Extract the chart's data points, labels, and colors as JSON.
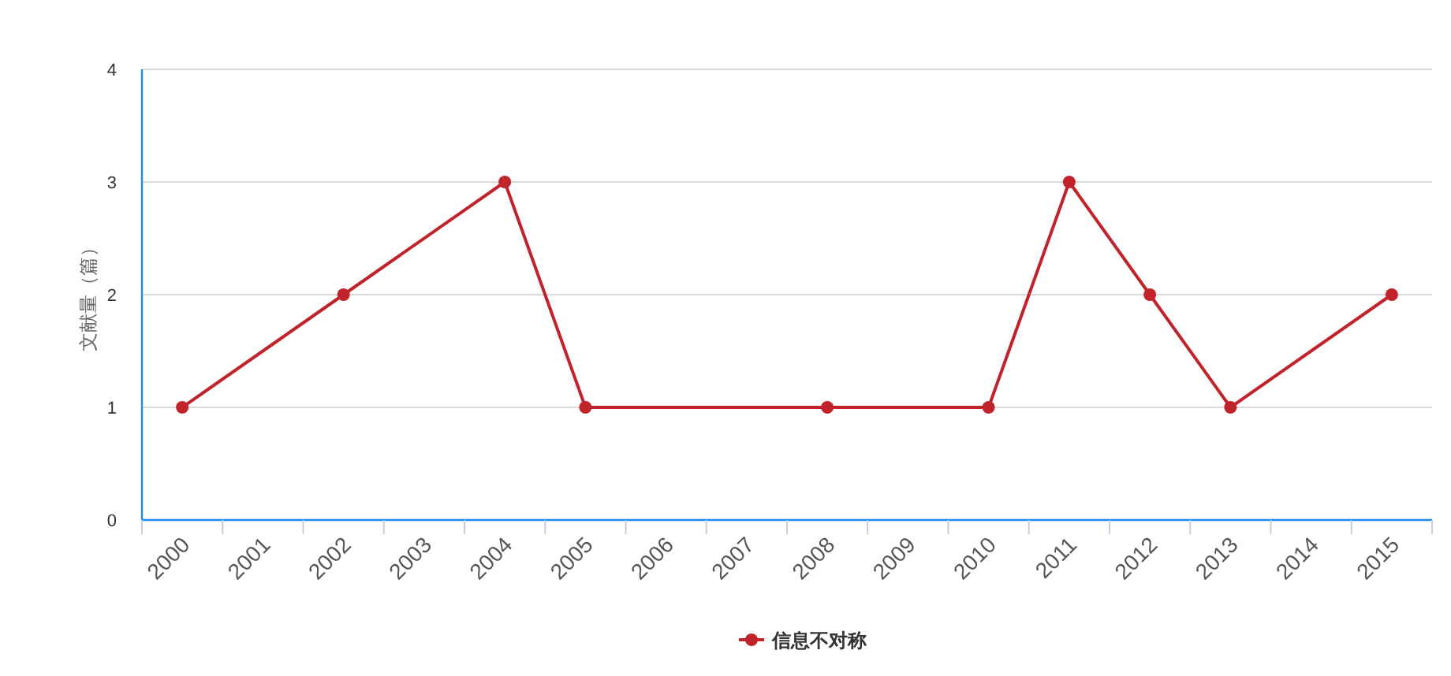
{
  "chart_data": {
    "type": "line",
    "ylabel": "文献量（篇）",
    "x": [
      2000,
      2002,
      2004,
      2005,
      2008,
      2010,
      2011,
      2012,
      2013,
      2015
    ],
    "series": [
      {
        "name": "信息不对称",
        "color": "#c1232b",
        "values": [
          1,
          2,
          3,
          1,
          1,
          1,
          3,
          2,
          1,
          2
        ]
      }
    ],
    "xlim": [
      1999.5,
      2015.5
    ],
    "xticks": [
      {
        "value": 1999.5,
        "label": null
      },
      2000,
      {
        "value": 2000.5,
        "label": null
      },
      2001,
      {
        "value": 2001.5,
        "label": null
      },
      2002,
      {
        "value": 2002.5,
        "label": null
      },
      2003,
      {
        "value": 2003.5,
        "label": null
      },
      2004,
      {
        "value": 2004.5,
        "label": null
      },
      2005,
      {
        "value": 2005.5,
        "label": null
      },
      2006,
      {
        "value": 2006.5,
        "label": null
      },
      2007,
      {
        "value": 2007.5,
        "label": null
      },
      2008,
      {
        "value": 2008.5,
        "label": null
      },
      2009,
      {
        "value": 2009.5,
        "label": null
      },
      2010,
      {
        "value": 2010.5,
        "label": null
      },
      2011,
      {
        "value": 2011.5,
        "label": null
      },
      2012,
      {
        "value": 2012.5,
        "label": null
      },
      2013,
      {
        "value": 2013.5,
        "label": null
      },
      2014,
      {
        "value": 2014.5,
        "label": null
      },
      2015,
      {
        "value": 2015.5,
        "label": null
      }
    ],
    "ylim": [
      0,
      4
    ],
    "yticks": [
      0,
      1,
      2,
      3,
      4
    ],
    "grid": "y",
    "legend": "bottom",
    "marker": "circle",
    "line_style": "solid"
  }
}
